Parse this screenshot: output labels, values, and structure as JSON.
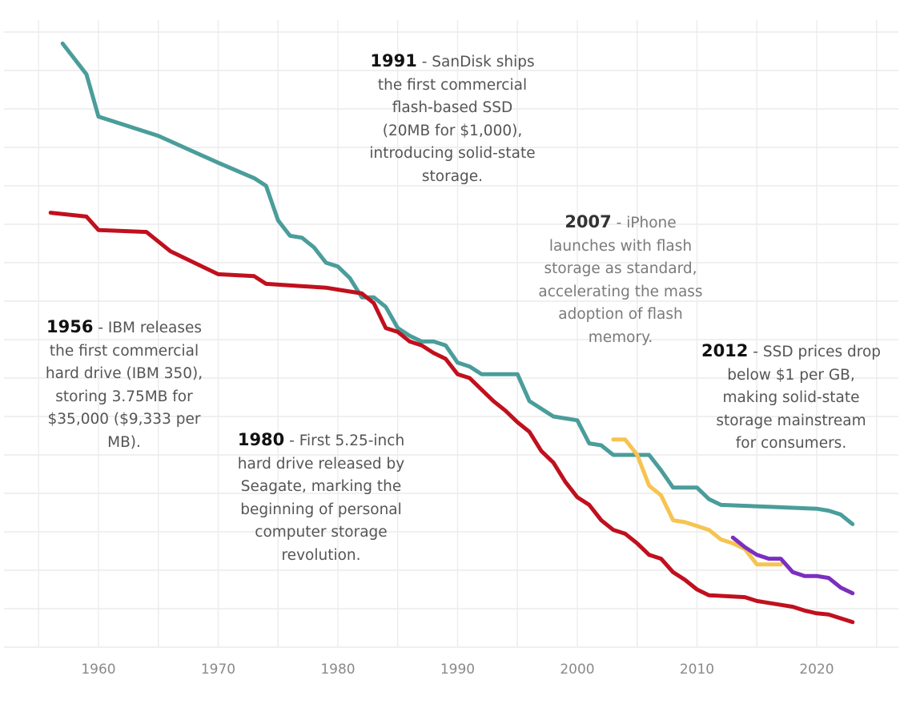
{
  "chart_data": {
    "type": "line",
    "title": "",
    "xlabel": "",
    "ylabel": "",
    "xlim": [
      1952.5,
      2026.5
    ],
    "ylim": [
      0,
      16
    ],
    "y_log_note": "y axis is unlabeled; values are relative positions on gridline scale (0-16)",
    "xticks": [
      1960,
      1970,
      1980,
      1990,
      2000,
      2010,
      2020
    ],
    "xtick_labels": [
      "1960",
      "1970",
      "1980",
      "1990",
      "2000",
      "2010",
      "2020"
    ],
    "grid": true,
    "series": [
      {
        "name": "teal",
        "color": "#4a9d9a",
        "points": [
          [
            1957,
            15.7
          ],
          [
            1959,
            14.9
          ],
          [
            1960,
            13.8
          ],
          [
            1965,
            13.3
          ],
          [
            1970,
            12.6
          ],
          [
            1973,
            12.2
          ],
          [
            1974,
            12.0
          ],
          [
            1975,
            11.1
          ],
          [
            1976,
            10.7
          ],
          [
            1977,
            10.65
          ],
          [
            1978,
            10.4
          ],
          [
            1979,
            10.0
          ],
          [
            1980,
            9.9
          ],
          [
            1981,
            9.6
          ],
          [
            1982,
            9.1
          ],
          [
            1983,
            9.1
          ],
          [
            1984,
            8.85
          ],
          [
            1985,
            8.3
          ],
          [
            1986,
            8.1
          ],
          [
            1987,
            7.95
          ],
          [
            1988,
            7.95
          ],
          [
            1989,
            7.85
          ],
          [
            1990,
            7.4
          ],
          [
            1991,
            7.3
          ],
          [
            1992,
            7.1
          ],
          [
            1995,
            7.1
          ],
          [
            1996,
            6.4
          ],
          [
            1998,
            6.0
          ],
          [
            2000,
            5.9
          ],
          [
            2001,
            5.3
          ],
          [
            2002,
            5.25
          ],
          [
            2003,
            5.0
          ],
          [
            2006,
            5.0
          ],
          [
            2007,
            4.6
          ],
          [
            2008,
            4.15
          ],
          [
            2010,
            4.15
          ],
          [
            2011,
            3.85
          ],
          [
            2012,
            3.7
          ],
          [
            2016,
            3.65
          ],
          [
            2020,
            3.6
          ],
          [
            2021,
            3.55
          ],
          [
            2022,
            3.45
          ],
          [
            2023,
            3.2
          ]
        ]
      },
      {
        "name": "red",
        "color": "#c0101e",
        "points": [
          [
            1956,
            11.3
          ],
          [
            1959,
            11.2
          ],
          [
            1960,
            10.85
          ],
          [
            1964,
            10.8
          ],
          [
            1966,
            10.3
          ],
          [
            1970,
            9.7
          ],
          [
            1973,
            9.65
          ],
          [
            1974,
            9.45
          ],
          [
            1979,
            9.35
          ],
          [
            1980,
            9.3
          ],
          [
            1982,
            9.2
          ],
          [
            1983,
            8.95
          ],
          [
            1984,
            8.3
          ],
          [
            1985,
            8.2
          ],
          [
            1986,
            7.95
          ],
          [
            1987,
            7.85
          ],
          [
            1988,
            7.65
          ],
          [
            1989,
            7.5
          ],
          [
            1990,
            7.1
          ],
          [
            1991,
            7.0
          ],
          [
            1992,
            6.7
          ],
          [
            1993,
            6.4
          ],
          [
            1994,
            6.15
          ],
          [
            1995,
            5.85
          ],
          [
            1996,
            5.6
          ],
          [
            1997,
            5.1
          ],
          [
            1998,
            4.8
          ],
          [
            1999,
            4.3
          ],
          [
            2000,
            3.9
          ],
          [
            2001,
            3.7
          ],
          [
            2002,
            3.3
          ],
          [
            2003,
            3.05
          ],
          [
            2004,
            2.95
          ],
          [
            2005,
            2.7
          ],
          [
            2006,
            2.4
          ],
          [
            2007,
            2.3
          ],
          [
            2008,
            1.95
          ],
          [
            2009,
            1.75
          ],
          [
            2010,
            1.5
          ],
          [
            2011,
            1.35
          ],
          [
            2014,
            1.3
          ],
          [
            2015,
            1.2
          ],
          [
            2016,
            1.15
          ],
          [
            2017,
            1.1
          ],
          [
            2018,
            1.05
          ],
          [
            2019,
            0.95
          ],
          [
            2020,
            0.88
          ],
          [
            2021,
            0.85
          ],
          [
            2022,
            0.75
          ],
          [
            2023,
            0.65
          ]
        ]
      },
      {
        "name": "yellow",
        "color": "#f5c451",
        "points": [
          [
            2003,
            5.4
          ],
          [
            2004,
            5.4
          ],
          [
            2005,
            5.0
          ],
          [
            2006,
            4.2
          ],
          [
            2007,
            3.95
          ],
          [
            2008,
            3.3
          ],
          [
            2009,
            3.25
          ],
          [
            2010,
            3.15
          ],
          [
            2011,
            3.05
          ],
          [
            2012,
            2.8
          ],
          [
            2013,
            2.7
          ],
          [
            2014,
            2.55
          ],
          [
            2015,
            2.15
          ],
          [
            2016,
            2.15
          ],
          [
            2017,
            2.15
          ]
        ]
      },
      {
        "name": "purple",
        "color": "#7b2fbf",
        "points": [
          [
            2013,
            2.85
          ],
          [
            2014,
            2.6
          ],
          [
            2015,
            2.4
          ],
          [
            2016,
            2.3
          ],
          [
            2017,
            2.3
          ],
          [
            2018,
            1.95
          ],
          [
            2019,
            1.85
          ],
          [
            2020,
            1.85
          ],
          [
            2021,
            1.8
          ],
          [
            2022,
            1.55
          ],
          [
            2023,
            1.4
          ]
        ]
      }
    ],
    "annotations": [
      {
        "year": "1956",
        "text": "- IBM releases the first commercial hard drive (IBM 350), storing 3.75MB for $35,000 ($9,333 per MB)."
      },
      {
        "year": "1980",
        "text": "- First 5.25-inch hard drive released by Seagate, marking the beginning of personal computer storage revolution."
      },
      {
        "year": "1991",
        "text": "- SanDisk ships the first commercial flash-based SSD (20MB for $1,000), introducing solid-state storage."
      },
      {
        "year": "2007",
        "text": "- iPhone launches with flash storage as standard, accelerating the mass adoption of flash memory."
      },
      {
        "year": "2012",
        "text": "- SSD prices drop below $1 per GB, making solid-state storage mainstream for consumers."
      }
    ],
    "annotation_lines": {
      "a1956": [
        "the first commercial",
        "hard drive (IBM 350),",
        "storing 3.75MB for",
        "$35,000 ($9,333 per",
        "MB)."
      ],
      "a1980": [
        "hard drive released by",
        "Seagate, marking the",
        "beginning of personal",
        "computer storage",
        "revolution."
      ],
      "a1991": [
        "the first commercial",
        "flash-based SSD",
        "(20MB for $1,000),",
        "introducing solid-state",
        "storage."
      ],
      "a2007": [
        "launches with flash",
        "storage as standard,",
        "accelerating the mass",
        "adoption of flash",
        "memory."
      ],
      "a2012": [
        "below $1 per GB,",
        "making solid-state",
        "storage mainstream",
        "for consumers."
      ]
    },
    "annotation_first_lines": {
      "a1956": "- IBM releases",
      "a1980": "- First 5.25-inch",
      "a1991": "- SanDisk ships",
      "a2007": "- iPhone",
      "a2012": "- SSD prices drop"
    }
  }
}
